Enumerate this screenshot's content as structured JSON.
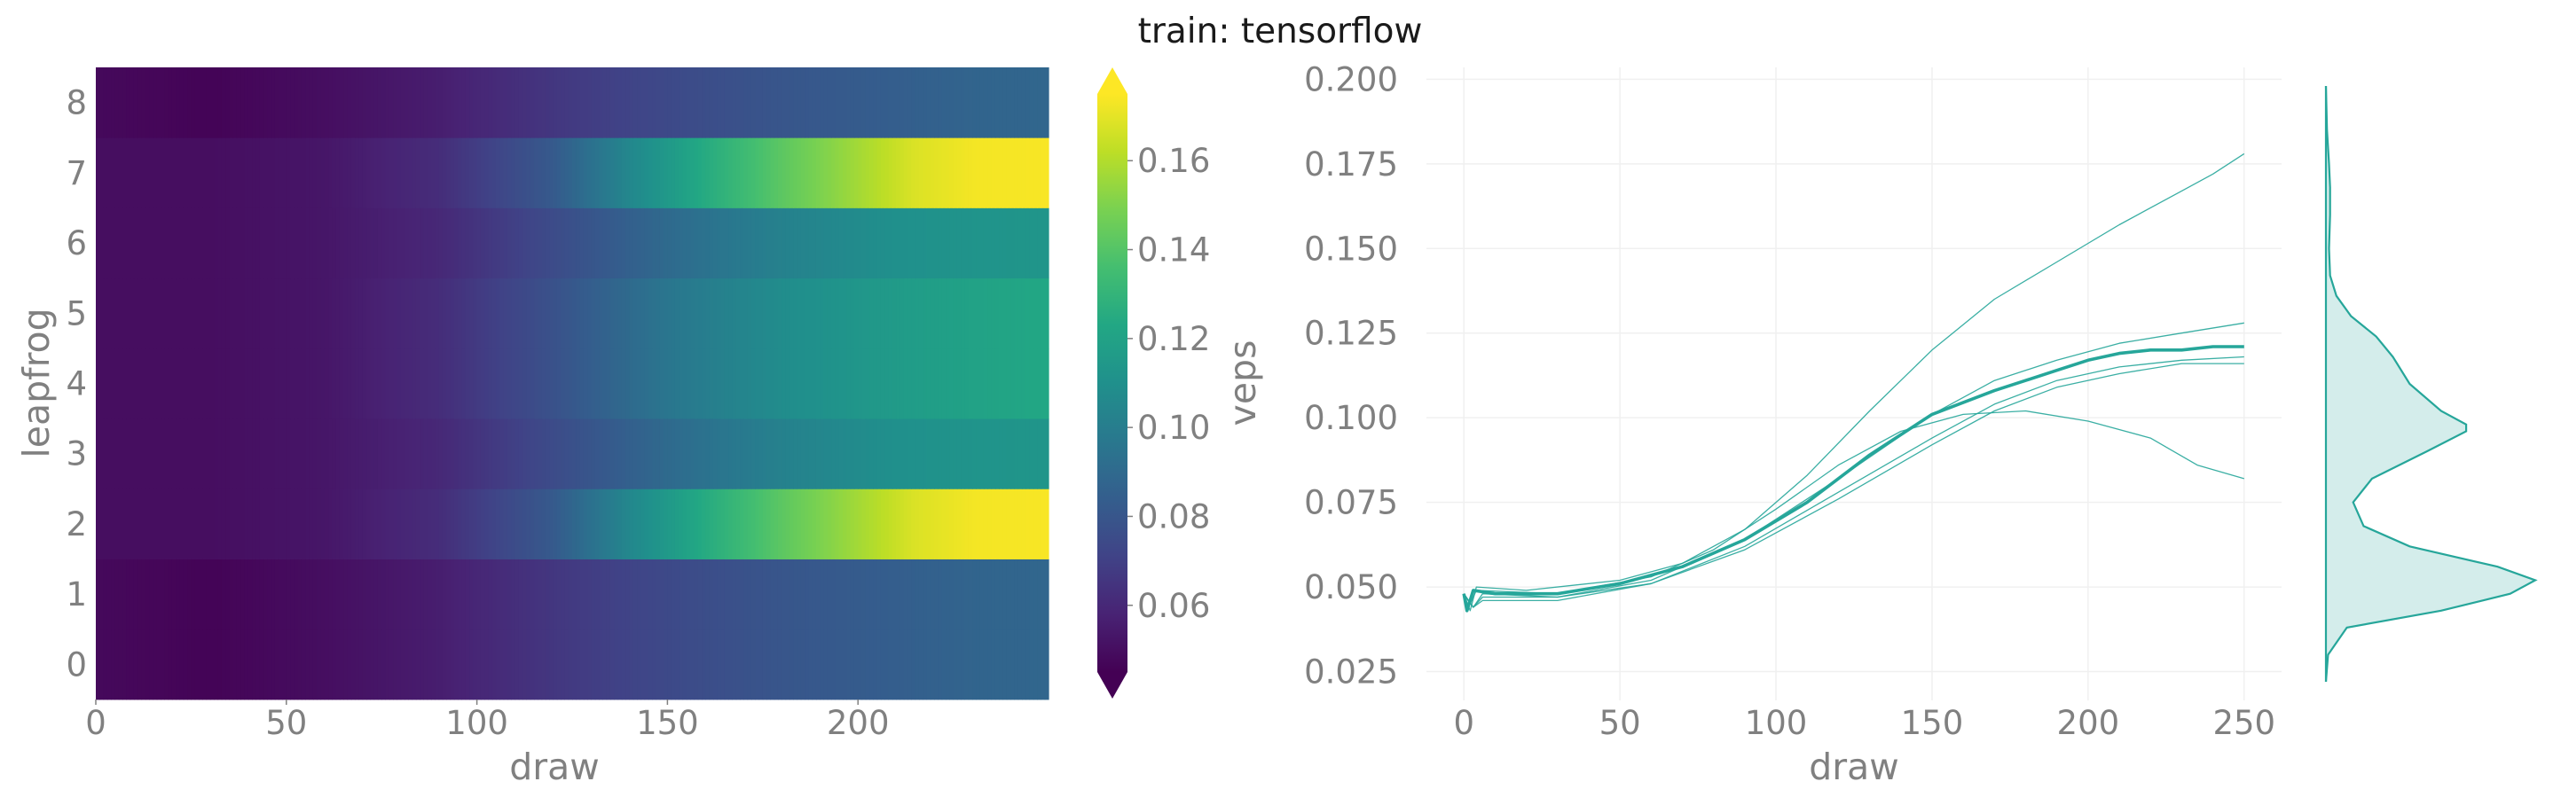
{
  "title": "train: tensorflow",
  "chart_data": [
    {
      "type": "heatmap",
      "xlabel": "draw",
      "ylabel": "leapfrog",
      "colorbar_label": "veps",
      "colormap": "viridis",
      "xlim": [
        0,
        250
      ],
      "x_ticks": [
        0,
        50,
        100,
        150,
        200
      ],
      "y_categories": [
        0,
        1,
        2,
        3,
        4,
        5,
        6,
        7,
        8
      ],
      "color_range": [
        0.045,
        0.175
      ],
      "colorbar_ticks": [
        0.06,
        0.08,
        0.1,
        0.12,
        0.14,
        0.16
      ],
      "colorbar_tick_labels": [
        "0.06",
        "0.08",
        "0.10",
        "0.12",
        "0.14",
        "0.16"
      ],
      "rows": [
        {
          "leapfrog": 0,
          "profile": [
            [
              0,
              0.048
            ],
            [
              30,
              0.046
            ],
            [
              60,
              0.05
            ],
            [
              90,
              0.056
            ],
            [
              120,
              0.066
            ],
            [
              150,
              0.074
            ],
            [
              180,
              0.08
            ],
            [
              210,
              0.084
            ],
            [
              230,
              0.087
            ],
            [
              250,
              0.088
            ]
          ]
        },
        {
          "leapfrog": 1,
          "profile": [
            [
              0,
              0.048
            ],
            [
              30,
              0.046
            ],
            [
              60,
              0.05
            ],
            [
              90,
              0.056
            ],
            [
              120,
              0.066
            ],
            [
              150,
              0.074
            ],
            [
              180,
              0.08
            ],
            [
              210,
              0.084
            ],
            [
              230,
              0.087
            ],
            [
              250,
              0.088
            ]
          ]
        },
        {
          "leapfrog": 2,
          "profile": [
            [
              0,
              0.05
            ],
            [
              30,
              0.05
            ],
            [
              60,
              0.053
            ],
            [
              90,
              0.062
            ],
            [
              120,
              0.082
            ],
            [
              140,
              0.105
            ],
            [
              160,
              0.125
            ],
            [
              180,
              0.142
            ],
            [
              200,
              0.157
            ],
            [
              215,
              0.168
            ],
            [
              230,
              0.173
            ],
            [
              250,
              0.174
            ]
          ]
        },
        {
          "leapfrog": 3,
          "profile": [
            [
              0,
              0.05
            ],
            [
              30,
              0.05
            ],
            [
              60,
              0.053
            ],
            [
              90,
              0.06
            ],
            [
              120,
              0.075
            ],
            [
              150,
              0.09
            ],
            [
              180,
              0.102
            ],
            [
              210,
              0.11
            ],
            [
              230,
              0.112
            ],
            [
              250,
              0.113
            ]
          ]
        },
        {
          "leapfrog": 4,
          "profile": [
            [
              0,
              0.05
            ],
            [
              30,
              0.05
            ],
            [
              60,
              0.053
            ],
            [
              90,
              0.062
            ],
            [
              120,
              0.078
            ],
            [
              150,
              0.096
            ],
            [
              180,
              0.108
            ],
            [
              210,
              0.116
            ],
            [
              230,
              0.12
            ],
            [
              250,
              0.123
            ]
          ]
        },
        {
          "leapfrog": 5,
          "profile": [
            [
              0,
              0.05
            ],
            [
              30,
              0.05
            ],
            [
              60,
              0.053
            ],
            [
              90,
              0.062
            ],
            [
              120,
              0.078
            ],
            [
              150,
              0.096
            ],
            [
              180,
              0.108
            ],
            [
              210,
              0.116
            ],
            [
              230,
              0.12
            ],
            [
              250,
              0.123
            ]
          ]
        },
        {
          "leapfrog": 6,
          "profile": [
            [
              0,
              0.05
            ],
            [
              30,
              0.05
            ],
            [
              60,
              0.053
            ],
            [
              90,
              0.06
            ],
            [
              120,
              0.075
            ],
            [
              150,
              0.09
            ],
            [
              180,
              0.102
            ],
            [
              210,
              0.11
            ],
            [
              230,
              0.112
            ],
            [
              250,
              0.113
            ]
          ]
        },
        {
          "leapfrog": 7,
          "profile": [
            [
              0,
              0.05
            ],
            [
              30,
              0.05
            ],
            [
              60,
              0.053
            ],
            [
              90,
              0.062
            ],
            [
              120,
              0.082
            ],
            [
              140,
              0.105
            ],
            [
              160,
              0.125
            ],
            [
              180,
              0.142
            ],
            [
              200,
              0.157
            ],
            [
              215,
              0.168
            ],
            [
              230,
              0.173
            ],
            [
              250,
              0.174
            ]
          ]
        },
        {
          "leapfrog": 8,
          "profile": [
            [
              0,
              0.048
            ],
            [
              30,
              0.046
            ],
            [
              60,
              0.05
            ],
            [
              90,
              0.056
            ],
            [
              120,
              0.066
            ],
            [
              150,
              0.074
            ],
            [
              180,
              0.08
            ],
            [
              210,
              0.084
            ],
            [
              230,
              0.087
            ],
            [
              250,
              0.088
            ]
          ]
        }
      ]
    },
    {
      "type": "line",
      "xlabel": "draw",
      "ylabel": "",
      "xlim": [
        -12,
        262
      ],
      "ylim": [
        0.0165,
        0.2035
      ],
      "x_ticks": [
        0,
        50,
        100,
        150,
        200,
        250
      ],
      "y_ticks": [
        0.025,
        0.05,
        0.075,
        0.1,
        0.125,
        0.15,
        0.175,
        0.2
      ],
      "y_tick_labels": [
        "0.025",
        "0.050",
        "0.075",
        "0.100",
        "0.125",
        "0.150",
        "0.175",
        "0.200"
      ],
      "grid": true,
      "line_color": "#26a69a",
      "series": [
        {
          "values": [
            [
              0,
              0.048
            ],
            [
              1,
              0.043
            ],
            [
              3,
              0.049
            ],
            [
              10,
              0.048
            ],
            [
              30,
              0.048
            ],
            [
              50,
              0.051
            ],
            [
              70,
              0.056
            ],
            [
              90,
              0.064
            ],
            [
              110,
              0.075
            ],
            [
              130,
              0.089
            ],
            [
              150,
              0.101
            ],
            [
              170,
              0.108
            ],
            [
              190,
              0.114
            ],
            [
              200,
              0.117
            ],
            [
              210,
              0.119
            ],
            [
              220,
              0.12
            ],
            [
              230,
              0.12
            ],
            [
              240,
              0.121
            ],
            [
              250,
              0.121
            ]
          ],
          "style": "mean"
        },
        {
          "values": [
            [
              0,
              0.048
            ],
            [
              2,
              0.043
            ],
            [
              4,
              0.05
            ],
            [
              20,
              0.049
            ],
            [
              50,
              0.052
            ],
            [
              70,
              0.057
            ],
            [
              90,
              0.067
            ],
            [
              110,
              0.083
            ],
            [
              130,
              0.102
            ],
            [
              150,
              0.12
            ],
            [
              170,
              0.135
            ],
            [
              190,
              0.146
            ],
            [
              210,
              0.157
            ],
            [
              230,
              0.167
            ],
            [
              240,
              0.172
            ],
            [
              250,
              0.178
            ]
          ]
        },
        {
          "values": [
            [
              0,
              0.048
            ],
            [
              2,
              0.045
            ],
            [
              4,
              0.049
            ],
            [
              30,
              0.048
            ],
            [
              60,
              0.053
            ],
            [
              80,
              0.061
            ],
            [
              100,
              0.073
            ],
            [
              120,
              0.086
            ],
            [
              140,
              0.096
            ],
            [
              160,
              0.101
            ],
            [
              180,
              0.102
            ],
            [
              200,
              0.099
            ],
            [
              220,
              0.094
            ],
            [
              235,
              0.086
            ],
            [
              250,
              0.082
            ]
          ]
        },
        {
          "values": [
            [
              0,
              0.048
            ],
            [
              3,
              0.044
            ],
            [
              6,
              0.048
            ],
            [
              30,
              0.047
            ],
            [
              60,
              0.052
            ],
            [
              90,
              0.064
            ],
            [
              120,
              0.082
            ],
            [
              150,
              0.101
            ],
            [
              170,
              0.111
            ],
            [
              190,
              0.117
            ],
            [
              210,
              0.122
            ],
            [
              230,
              0.125
            ],
            [
              250,
              0.128
            ]
          ]
        },
        {
          "values": [
            [
              0,
              0.048
            ],
            [
              3,
              0.044
            ],
            [
              6,
              0.046
            ],
            [
              30,
              0.046
            ],
            [
              60,
              0.051
            ],
            [
              90,
              0.062
            ],
            [
              120,
              0.078
            ],
            [
              150,
              0.094
            ],
            [
              170,
              0.104
            ],
            [
              190,
              0.111
            ],
            [
              210,
              0.115
            ],
            [
              230,
              0.117
            ],
            [
              250,
              0.118
            ]
          ]
        },
        {
          "values": [
            [
              0,
              0.048
            ],
            [
              3,
              0.044
            ],
            [
              6,
              0.047
            ],
            [
              30,
              0.047
            ],
            [
              60,
              0.051
            ],
            [
              90,
              0.061
            ],
            [
              120,
              0.076
            ],
            [
              150,
              0.092
            ],
            [
              170,
              0.102
            ],
            [
              190,
              0.109
            ],
            [
              210,
              0.113
            ],
            [
              230,
              0.116
            ],
            [
              250,
              0.116
            ]
          ]
        }
      ],
      "density": {
        "orientation": "vertical",
        "curve": [
          [
            0.022,
            0.0
          ],
          [
            0.03,
            0.01
          ],
          [
            0.038,
            0.1
          ],
          [
            0.043,
            0.55
          ],
          [
            0.048,
            0.88
          ],
          [
            0.052,
            1.0
          ],
          [
            0.056,
            0.82
          ],
          [
            0.062,
            0.4
          ],
          [
            0.068,
            0.18
          ],
          [
            0.075,
            0.13
          ],
          [
            0.082,
            0.22
          ],
          [
            0.09,
            0.48
          ],
          [
            0.096,
            0.67
          ],
          [
            0.098,
            0.67
          ],
          [
            0.102,
            0.55
          ],
          [
            0.11,
            0.4
          ],
          [
            0.118,
            0.32
          ],
          [
            0.124,
            0.24
          ],
          [
            0.13,
            0.12
          ],
          [
            0.136,
            0.05
          ],
          [
            0.142,
            0.02
          ],
          [
            0.15,
            0.015
          ],
          [
            0.16,
            0.02
          ],
          [
            0.168,
            0.02
          ],
          [
            0.175,
            0.015
          ],
          [
            0.185,
            0.005
          ],
          [
            0.198,
            0.0
          ]
        ]
      }
    }
  ]
}
